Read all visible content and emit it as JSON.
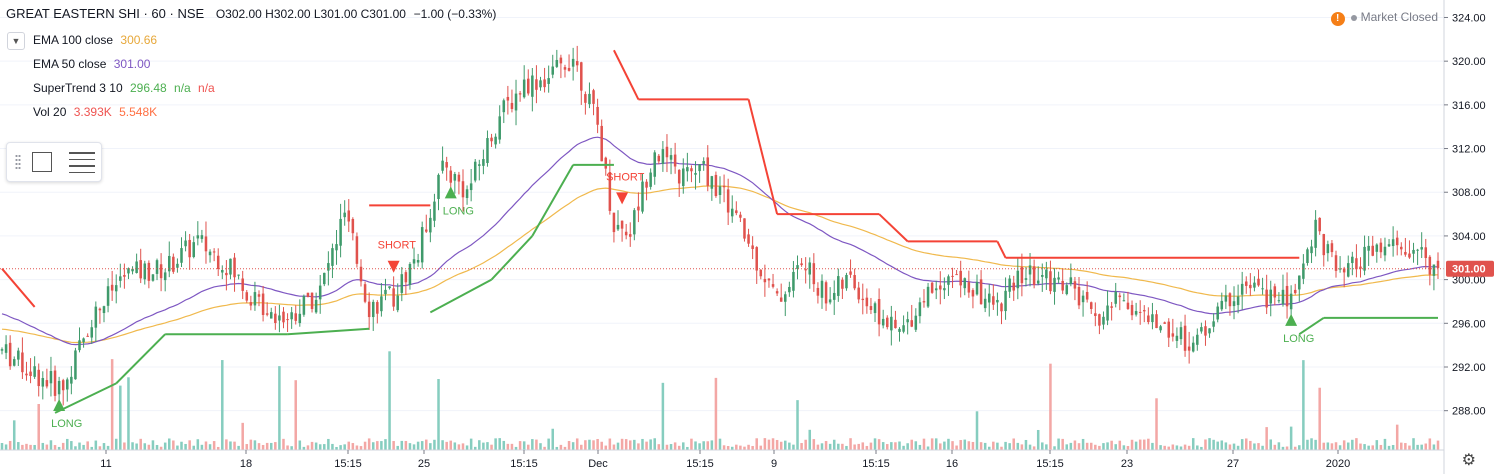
{
  "header": {
    "symbol": "GREAT EASTERN SHI · 60 · NSE",
    "ohlc": "O302.00 H302.00 L301.00 C301.00",
    "change": "−1.00 (−0.33%)"
  },
  "indicators": [
    {
      "name": "EMA 100 close",
      "values": [
        "300.66"
      ],
      "colors": [
        "#e7a83a"
      ]
    },
    {
      "name": "EMA 50 close",
      "values": [
        "301.00"
      ],
      "colors": [
        "#7e57c2"
      ]
    },
    {
      "name": "SuperTrend 3 10",
      "values": [
        "296.48",
        "n/a",
        "n/a"
      ],
      "colors": [
        "#4caf50",
        "#4caf50",
        "#ef5350"
      ]
    },
    {
      "name": "Vol 20",
      "values": [
        "3.393K",
        "5.548K"
      ],
      "colors": [
        "#ef5350",
        "#ff7043"
      ]
    }
  ],
  "status": {
    "market": "Market Closed",
    "alert_icon": "!"
  },
  "icons": {
    "collapse": "chevron-down-icon",
    "rect_tool": "rectangle-tool-icon",
    "menu": "menu-lines-icon",
    "settings": "gear-icon"
  },
  "colors": {
    "up": "#3f9a6b",
    "down": "#e0524d",
    "supertrend_up": "#4caf50",
    "supertrend_down": "#f44336",
    "ema100": "#f0b94d",
    "ema50": "#7e57c2",
    "vol_up": "#86cdbf",
    "vol_down": "#f3a7a5",
    "price_badge": "#e0524d",
    "grid": "#f0f3fa"
  },
  "chart_data": {
    "type": "candlestick",
    "price_axis": {
      "ticks": [
        "288.00",
        "292.00",
        "296.00",
        "300.00",
        "304.00",
        "308.00",
        "312.00",
        "316.00",
        "320.00",
        "324.00"
      ],
      "range": [
        284.4,
        325.6
      ],
      "last_price": "301.00"
    },
    "time_axis": {
      "ticks": [
        "11",
        "18",
        "15:15",
        "25",
        "15:15",
        "Dec",
        "15:15",
        "9",
        "15:15",
        "16",
        "15:15",
        "23",
        "27",
        "2020"
      ]
    },
    "key_points": [
      {
        "t": 0,
        "p": 293.5
      },
      {
        "t": 10,
        "p": 291.0
      },
      {
        "t": 15,
        "p": 290.0
      },
      {
        "t": 22,
        "p": 296.5
      },
      {
        "t": 30,
        "p": 300.5
      },
      {
        "t": 40,
        "p": 301.0
      },
      {
        "t": 48,
        "p": 303.5
      },
      {
        "t": 55,
        "p": 301.5
      },
      {
        "t": 62,
        "p": 298.0
      },
      {
        "t": 70,
        "p": 296.5
      },
      {
        "t": 78,
        "p": 299.0
      },
      {
        "t": 84,
        "p": 306.0
      },
      {
        "t": 90,
        "p": 297.5
      },
      {
        "t": 96,
        "p": 298.5
      },
      {
        "t": 102,
        "p": 302.5
      },
      {
        "t": 108,
        "p": 310.5
      },
      {
        "t": 114,
        "p": 308.0
      },
      {
        "t": 122,
        "p": 315.0
      },
      {
        "t": 128,
        "p": 318.0
      },
      {
        "t": 134,
        "p": 318.5
      },
      {
        "t": 140,
        "p": 320.5
      },
      {
        "t": 146,
        "p": 314.0
      },
      {
        "t": 150,
        "p": 305.0
      },
      {
        "t": 154,
        "p": 304.5
      },
      {
        "t": 160,
        "p": 312.0
      },
      {
        "t": 166,
        "p": 309.5
      },
      {
        "t": 172,
        "p": 310.0
      },
      {
        "t": 178,
        "p": 307.0
      },
      {
        "t": 184,
        "p": 302.5
      },
      {
        "t": 190,
        "p": 298.0
      },
      {
        "t": 196,
        "p": 301.5
      },
      {
        "t": 202,
        "p": 298.5
      },
      {
        "t": 208,
        "p": 300.0
      },
      {
        "t": 214,
        "p": 297.0
      },
      {
        "t": 220,
        "p": 295.0
      },
      {
        "t": 226,
        "p": 298.5
      },
      {
        "t": 232,
        "p": 300.5
      },
      {
        "t": 238,
        "p": 299.0
      },
      {
        "t": 244,
        "p": 297.5
      },
      {
        "t": 250,
        "p": 300.5
      },
      {
        "t": 256,
        "p": 300.0
      },
      {
        "t": 262,
        "p": 299.5
      },
      {
        "t": 268,
        "p": 296.0
      },
      {
        "t": 274,
        "p": 298.5
      },
      {
        "t": 280,
        "p": 296.5
      },
      {
        "t": 286,
        "p": 295.5
      },
      {
        "t": 292,
        "p": 294.0
      },
      {
        "t": 298,
        "p": 297.0
      },
      {
        "t": 304,
        "p": 299.5
      },
      {
        "t": 310,
        "p": 298.5
      },
      {
        "t": 316,
        "p": 298.0
      },
      {
        "t": 322,
        "p": 305.0
      },
      {
        "t": 328,
        "p": 300.0
      },
      {
        "t": 334,
        "p": 302.0
      },
      {
        "t": 340,
        "p": 303.0
      },
      {
        "t": 346,
        "p": 302.5
      },
      {
        "t": 352,
        "p": 301.0
      }
    ],
    "supertrend": [
      {
        "t": 0,
        "p": 301.0,
        "dir": "down"
      },
      {
        "t": 8,
        "p": 297.5,
        "dir": "down"
      },
      {
        "t": 13,
        "p": 287.8,
        "dir": "up"
      },
      {
        "t": 28,
        "p": 290.5,
        "dir": "up"
      },
      {
        "t": 40,
        "p": 295.0,
        "dir": "up"
      },
      {
        "t": 70,
        "p": 295.0,
        "dir": "up"
      },
      {
        "t": 90,
        "p": 295.5,
        "dir": "up"
      },
      {
        "t": 90,
        "p": 306.8,
        "dir": "down"
      },
      {
        "t": 105,
        "p": 306.8,
        "dir": "down"
      },
      {
        "t": 105,
        "p": 297.0,
        "dir": "up"
      },
      {
        "t": 120,
        "p": 300.0,
        "dir": "up"
      },
      {
        "t": 130,
        "p": 304.0,
        "dir": "up"
      },
      {
        "t": 140,
        "p": 310.5,
        "dir": "up"
      },
      {
        "t": 150,
        "p": 310.5,
        "dir": "up"
      },
      {
        "t": 150,
        "p": 321.0,
        "dir": "down"
      },
      {
        "t": 156,
        "p": 316.5,
        "dir": "down"
      },
      {
        "t": 183,
        "p": 316.5,
        "dir": "down"
      },
      {
        "t": 190,
        "p": 306.0,
        "dir": "down"
      },
      {
        "t": 215,
        "p": 306.0,
        "dir": "down"
      },
      {
        "t": 222,
        "p": 303.5,
        "dir": "down"
      },
      {
        "t": 244,
        "p": 303.5,
        "dir": "down"
      },
      {
        "t": 246,
        "p": 302.0,
        "dir": "down"
      },
      {
        "t": 318,
        "p": 302.0,
        "dir": "down"
      },
      {
        "t": 318,
        "p": 295.0,
        "dir": "up"
      },
      {
        "t": 324,
        "p": 296.5,
        "dir": "up"
      },
      {
        "t": 352,
        "p": 296.5,
        "dir": "up"
      }
    ],
    "signals": [
      {
        "t": 14,
        "label": "LONG",
        "type": "long"
      },
      {
        "t": 96,
        "label": "SHORT",
        "type": "short"
      },
      {
        "t": 110,
        "label": "LONG",
        "type": "long"
      },
      {
        "t": 152,
        "label": "SHORT",
        "type": "short"
      },
      {
        "t": 316,
        "label": "LONG",
        "type": "long"
      }
    ]
  }
}
